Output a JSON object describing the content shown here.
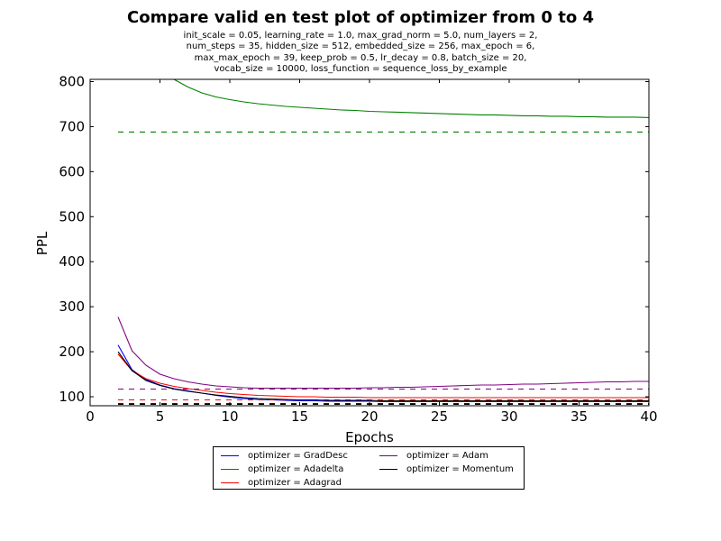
{
  "header": {
    "title": "Compare valid en test plot of optimizer from 0 to 4",
    "subtitle_lines": [
      "init_scale = 0.05, learning_rate = 1.0, max_grad_norm = 5.0, num_layers = 2,",
      "num_steps = 35, hidden_size = 512, embedded_size = 256, max_epoch = 6,",
      "max_max_epoch = 39, keep_prob = 0.5, lr_decay = 0.8, batch_size = 20,",
      "vocab_size = 10000, loss_function = sequence_loss_by_example"
    ]
  },
  "chart_data": {
    "type": "line",
    "title": "Compare valid en test plot of optimizer from 0 to 4",
    "xlabel": "Epochs",
    "ylabel": "PPL",
    "xlim": [
      0,
      40
    ],
    "ylim": [
      80,
      805
    ],
    "xticks": [
      0,
      5,
      10,
      15,
      20,
      25,
      30,
      35,
      40
    ],
    "yticks": [
      100,
      200,
      300,
      400,
      500,
      600,
      700,
      800
    ],
    "grid": false,
    "legend_position": "below-center",
    "series": [
      {
        "name": "optimizer = GradDesc",
        "color": "#0000ff",
        "style": "solid",
        "x": [
          2,
          3,
          4,
          5,
          6,
          7,
          8,
          9,
          10,
          11,
          12,
          13,
          14,
          15,
          16,
          17,
          18,
          19,
          20,
          21,
          22,
          23,
          24,
          25,
          26,
          27,
          28,
          29,
          30,
          31,
          32,
          33,
          34,
          35,
          36,
          37,
          38,
          39,
          40
        ],
        "y": [
          215,
          160,
          138,
          126,
          118,
          113,
          108,
          103,
          99,
          96,
          94,
          93,
          92,
          91,
          91,
          90,
          90,
          90,
          90,
          89,
          89,
          89,
          89,
          89,
          89,
          89,
          89,
          89,
          89,
          89,
          89,
          89,
          89,
          89,
          89,
          89,
          89,
          89,
          89
        ]
      },
      {
        "name": "optimizer = GradDesc (test)",
        "color": "#0000ff",
        "style": "dashed",
        "x": [
          2,
          40
        ],
        "y": [
          85,
          85
        ]
      },
      {
        "name": "optimizer = Adadelta",
        "color": "#008000",
        "style": "solid",
        "x": [
          6,
          7,
          8,
          9,
          10,
          11,
          12,
          13,
          14,
          15,
          16,
          17,
          18,
          19,
          20,
          21,
          22,
          23,
          24,
          25,
          26,
          27,
          28,
          29,
          30,
          31,
          32,
          33,
          34,
          35,
          36,
          37,
          38,
          39,
          40
        ],
        "y": [
          805,
          788,
          775,
          766,
          760,
          755,
          751,
          748,
          745,
          743,
          741,
          739,
          737,
          736,
          734,
          733,
          732,
          731,
          730,
          729,
          728,
          727,
          726,
          726,
          725,
          724,
          724,
          723,
          723,
          722,
          722,
          721,
          721,
          721,
          720
        ]
      },
      {
        "name": "optimizer = Adadelta (test)",
        "color": "#008000",
        "style": "dashed",
        "x": [
          2,
          40
        ],
        "y": [
          688,
          688
        ]
      },
      {
        "name": "optimizer = Adagrad",
        "color": "#ff0000",
        "style": "solid",
        "x": [
          2,
          3,
          4,
          5,
          6,
          7,
          8,
          9,
          10,
          11,
          12,
          13,
          14,
          15,
          16,
          17,
          18,
          19,
          20,
          21,
          22,
          23,
          24,
          25,
          26,
          27,
          28,
          29,
          30,
          31,
          32,
          33,
          34,
          35,
          36,
          37,
          38,
          39,
          40
        ],
        "y": [
          195,
          158,
          140,
          130,
          123,
          118,
          114,
          110,
          107,
          105,
          103,
          102,
          101,
          100,
          100,
          99,
          99,
          99,
          98,
          98,
          98,
          98,
          98,
          98,
          98,
          98,
          98,
          98,
          98,
          98,
          98,
          98,
          98,
          98,
          98,
          98,
          98,
          98,
          98
        ]
      },
      {
        "name": "optimizer = Adagrad (test)",
        "color": "#ff0000",
        "style": "dashed",
        "x": [
          2,
          40
        ],
        "y": [
          93,
          93
        ]
      },
      {
        "name": "optimizer = Adam",
        "color": "#800080",
        "style": "solid",
        "x": [
          2,
          3,
          4,
          5,
          6,
          7,
          8,
          9,
          10,
          11,
          12,
          13,
          14,
          15,
          16,
          17,
          18,
          19,
          20,
          21,
          22,
          23,
          24,
          25,
          26,
          27,
          28,
          29,
          30,
          31,
          32,
          33,
          34,
          35,
          36,
          37,
          38,
          39,
          40
        ],
        "y": [
          277,
          202,
          170,
          150,
          140,
          133,
          128,
          124,
          122,
          120,
          119,
          119,
          119,
          119,
          119,
          119,
          119,
          119,
          120,
          120,
          121,
          121,
          122,
          123,
          124,
          125,
          126,
          126,
          127,
          128,
          128,
          129,
          130,
          131,
          132,
          133,
          133,
          134,
          134
        ]
      },
      {
        "name": "optimizer = Adam (test)",
        "color": "#800080",
        "style": "dashed",
        "x": [
          2,
          40
        ],
        "y": [
          117,
          117
        ]
      },
      {
        "name": "optimizer = Momentum",
        "color": "#000000",
        "style": "solid",
        "x": [
          2,
          3,
          4,
          5,
          6,
          7,
          8,
          9,
          10,
          11,
          12,
          13,
          14,
          15,
          16,
          17,
          18,
          19,
          20,
          21,
          22,
          23,
          24,
          25,
          26,
          27,
          28,
          29,
          30,
          31,
          32,
          33,
          34,
          35,
          36,
          37,
          38,
          39,
          40
        ],
        "y": [
          200,
          158,
          136,
          125,
          117,
          112,
          108,
          104,
          101,
          98,
          96,
          95,
          94,
          93,
          93,
          92,
          92,
          92,
          92,
          91,
          91,
          91,
          91,
          91,
          91,
          91,
          91,
          91,
          91,
          91,
          91,
          91,
          91,
          91,
          91,
          91,
          91,
          91,
          91
        ]
      },
      {
        "name": "optimizer = Momentum (test)",
        "color": "#000000",
        "style": "dashed",
        "x": [
          2,
          40
        ],
        "y": [
          83,
          83
        ]
      }
    ]
  },
  "legend": {
    "entries": [
      {
        "label": "optimizer = GradDesc",
        "color": "#0000ff"
      },
      {
        "label": "optimizer = Adadelta",
        "color": "#008000"
      },
      {
        "label": "optimizer = Adagrad",
        "color": "#ff0000"
      },
      {
        "label": "optimizer = Adam",
        "color": "#800080"
      },
      {
        "label": "optimizer = Momentum",
        "color": "#000000"
      }
    ]
  }
}
